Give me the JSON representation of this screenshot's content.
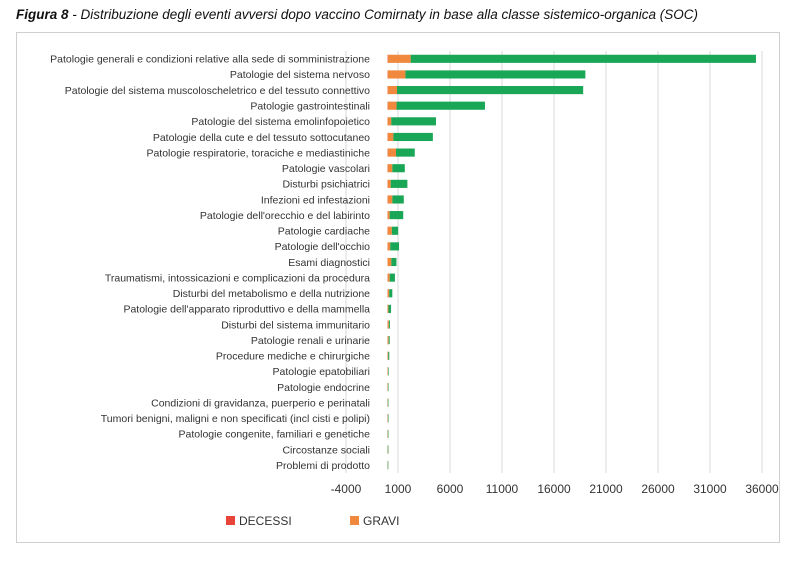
{
  "caption": {
    "label": "Figura 8",
    "text": " - Distribuzione degli eventi avversi dopo vaccino Comirnaty in base alla classe sistemico-organica (SOC)"
  },
  "chart_data": {
    "type": "bar",
    "orientation": "horizontal",
    "stacked": true,
    "categories": [
      "Patologie generali e condizioni relative alla sede di somministrazione",
      "Patologie del sistema nervoso",
      "Patologie del sistema muscoloscheletrico e del tessuto connettivo",
      "Patologie gastrointestinali",
      "Patologie del sistema emolinfopoietico",
      "Patologie della cute e del tessuto sottocutaneo",
      "Patologie respiratorie, toraciche e mediastiniche",
      "Patologie vascolari",
      "Disturbi psichiatrici",
      "Infezioni ed infestazioni",
      "Patologie dell'orecchio e del labirinto",
      "Patologie cardiache",
      "Patologie dell'occhio",
      "Esami diagnostici",
      "Traumatismi, intossicazioni e complicazioni da procedura",
      "Disturbi del metabolismo e della nutrizione",
      "Patologie dell'apparato riproduttivo e della mammella",
      "Disturbi del sistema immunitario",
      "Patologie renali e urinarie",
      "Procedure mediche e chirurgiche",
      "Patologie epatobiliari",
      "Patologie endocrine",
      "Condizioni di gravidanza, puerperio e perinatali",
      "Tumori benigni, maligni e non specificati (incl cisti e polipi)",
      "Patologie congenite, familiari e genetiche",
      "Circostanze sociali",
      "Problemi di prodotto"
    ],
    "series": [
      {
        "name": "DECESSI",
        "color": "#e8443a",
        "values": [
          20,
          15,
          5,
          10,
          2,
          3,
          10,
          5,
          3,
          8,
          1,
          10,
          1,
          3,
          5,
          3,
          1,
          2,
          2,
          1,
          1,
          1,
          1,
          1,
          1,
          1,
          0
        ]
      },
      {
        "name": "GRAVI",
        "color": "#f0883d",
        "values": [
          2200,
          1700,
          900,
          850,
          350,
          550,
          800,
          450,
          300,
          450,
          200,
          400,
          250,
          350,
          200,
          150,
          80,
          120,
          100,
          60,
          40,
          30,
          20,
          30,
          20,
          10,
          5
        ]
      },
      {
        "name": "",
        "color": "#1aa657",
        "values": [
          33200,
          17300,
          17900,
          8500,
          4300,
          3800,
          1800,
          1200,
          1600,
          1100,
          1300,
          600,
          850,
          500,
          500,
          300,
          250,
          100,
          100,
          100,
          30,
          20,
          30,
          20,
          15,
          10,
          5
        ]
      }
    ],
    "x_ticks": [
      -4000,
      1000,
      6000,
      11000,
      16000,
      21000,
      26000,
      31000,
      36000
    ],
    "xlim": [
      -4000,
      36000
    ],
    "legend": [
      "DECESSI",
      "GRAVI"
    ],
    "legend_position": "bottom",
    "grid": "vertical",
    "title": "",
    "xlabel": "",
    "ylabel": ""
  }
}
